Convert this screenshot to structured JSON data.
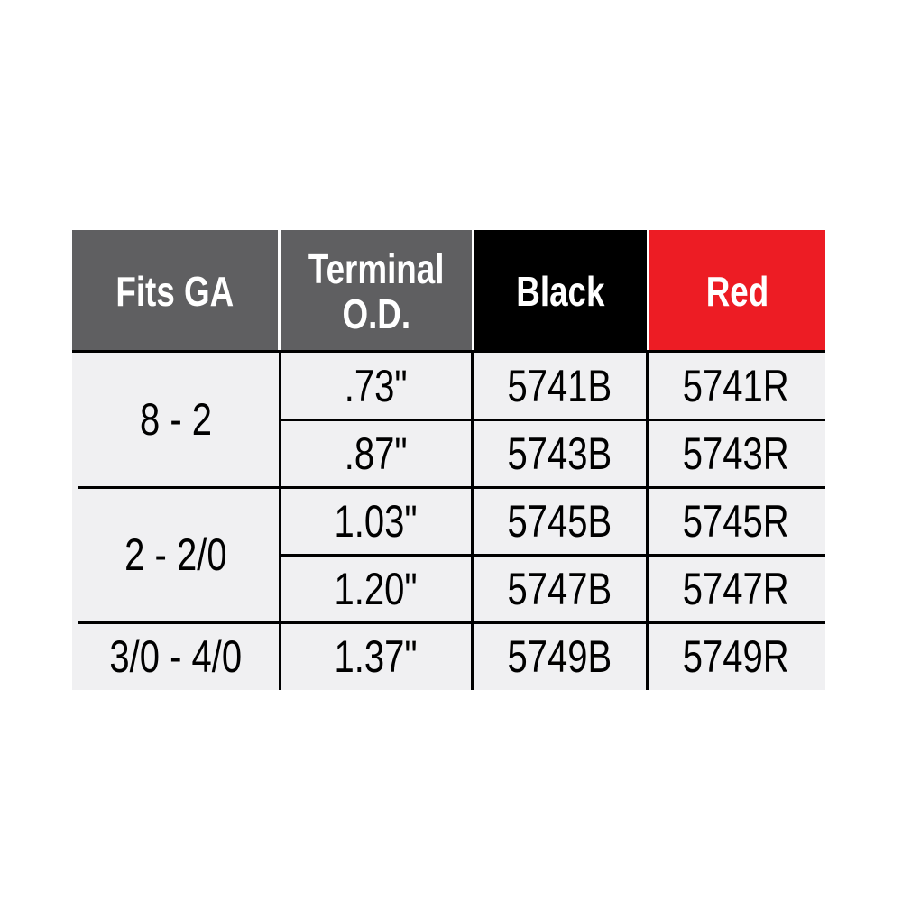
{
  "colors": {
    "header_gray": "#5f5f61",
    "black_header": "#000000",
    "red_header": "#ed1c24",
    "body_bg": "#f0f0f2"
  },
  "headers": [
    {
      "line1": "Fits GA"
    },
    {
      "line1": "Terminal",
      "line2": "O.D."
    },
    {
      "line1": "Black"
    },
    {
      "line1": "Red"
    }
  ],
  "groups": [
    {
      "gauge": "8 - 2",
      "rows": [
        {
          "od": ".73\"",
          "black": "5741B",
          "red": "5741R"
        },
        {
          "od": ".87\"",
          "black": "5743B",
          "red": "5743R"
        }
      ]
    },
    {
      "gauge": "2 - 2/0",
      "rows": [
        {
          "od": "1.03\"",
          "black": "5745B",
          "red": "5745R"
        },
        {
          "od": "1.20\"",
          "black": "5747B",
          "red": "5747R"
        }
      ]
    },
    {
      "gauge": "3/0 - 4/0",
      "rows": [
        {
          "od": "1.37\"",
          "black": "5749B",
          "red": "5749R"
        }
      ]
    }
  ]
}
